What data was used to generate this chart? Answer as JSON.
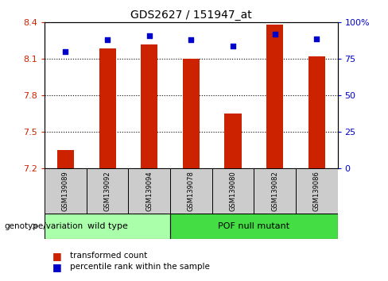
{
  "title": "GDS2627 / 151947_at",
  "samples": [
    "GSM139089",
    "GSM139092",
    "GSM139094",
    "GSM139078",
    "GSM139080",
    "GSM139082",
    "GSM139086"
  ],
  "transformed_counts": [
    7.35,
    8.19,
    8.22,
    8.1,
    7.65,
    8.38,
    8.12
  ],
  "percentile_ranks": [
    80,
    88,
    91,
    88,
    84,
    92,
    89
  ],
  "ylim_left": [
    7.2,
    8.4
  ],
  "ylim_right": [
    0,
    100
  ],
  "yticks_left": [
    7.2,
    7.5,
    7.8,
    8.1,
    8.4
  ],
  "yticks_right": [
    0,
    25,
    50,
    75,
    100
  ],
  "ytick_labels_left": [
    "7.2",
    "7.5",
    "7.8",
    "8.1",
    "8.4"
  ],
  "ytick_labels_right": [
    "0",
    "25",
    "50",
    "75",
    "100%"
  ],
  "groups": [
    {
      "label": "wild type",
      "indices": [
        0,
        1,
        2
      ],
      "color": "#AAFFAA"
    },
    {
      "label": "POF null mutant",
      "indices": [
        3,
        4,
        5,
        6
      ],
      "color": "#44DD44"
    }
  ],
  "bar_color": "#CC2200",
  "dot_color": "#0000CC",
  "bar_width": 0.4,
  "tick_color_left": "#CC2200",
  "tick_color_right": "#0000CC",
  "legend_bar_label": "transformed count",
  "legend_dot_label": "percentile rank within the sample",
  "genotype_label": "genotype/variation",
  "sample_box_color": "#CCCCCC",
  "baseline": 7.2
}
